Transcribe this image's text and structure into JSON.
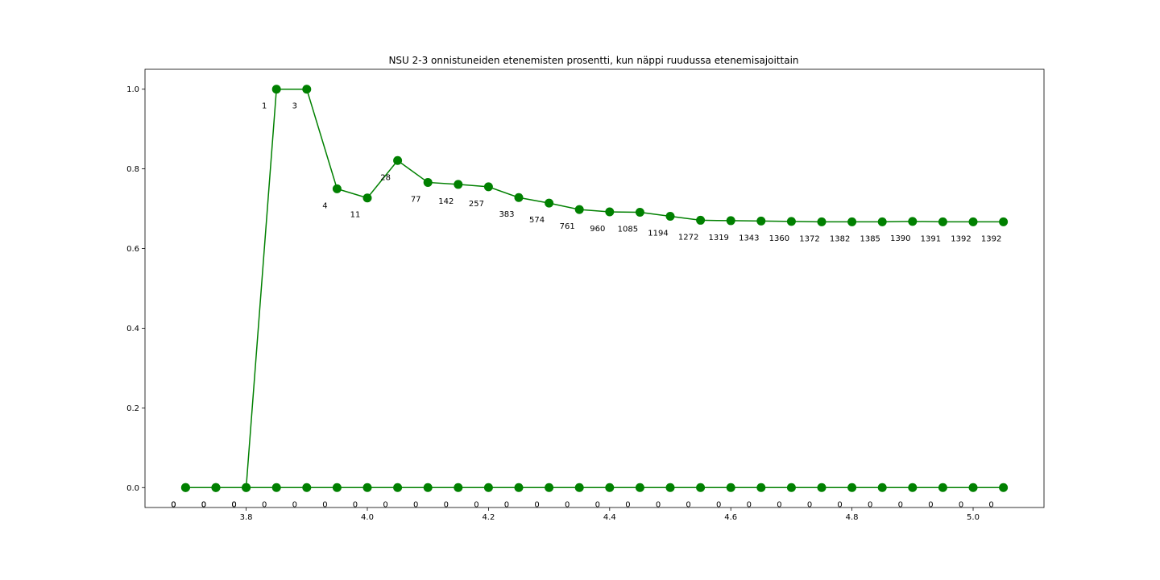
{
  "chart_data": {
    "type": "line",
    "title": "NSU 2-3 onnistuneiden etenemisten prosentti, kun näppi ruudussa etenemisajoittain",
    "xlabel": "",
    "ylabel": "",
    "xlim": [
      3.633,
      5.117
    ],
    "ylim": [
      -0.05,
      1.05
    ],
    "xticks": [
      "3.8",
      "4.0",
      "4.2",
      "4.4",
      "4.6",
      "4.8",
      "5.0"
    ],
    "yticks": [
      "0.0",
      "0.2",
      "0.4",
      "0.6",
      "0.8",
      "1.0"
    ],
    "grid": false,
    "legend": "none",
    "color": "#008000",
    "x": [
      3.7,
      3.75,
      3.8,
      3.85,
      3.9,
      3.95,
      4.0,
      4.05,
      4.1,
      4.15,
      4.2,
      4.25,
      4.3,
      4.35,
      4.4,
      4.45,
      4.5,
      4.55,
      4.6,
      4.65,
      4.7,
      4.75,
      4.8,
      4.85,
      4.9,
      4.95,
      5.0,
      5.05
    ],
    "series": [
      {
        "values": [
          0,
          0,
          0,
          1.0,
          1.0,
          0.75,
          0.727,
          0.821,
          0.766,
          0.761,
          0.755,
          0.728,
          0.714,
          0.698,
          0.692,
          0.691,
          0.681,
          0.671,
          0.67,
          0.669,
          0.668,
          0.667,
          0.667,
          0.667,
          0.668,
          0.667,
          0.667,
          0.667
        ],
        "labels": [
          "0",
          "0",
          "0",
          "1",
          "3",
          "4",
          "11",
          "28",
          "77",
          "142",
          "257",
          "383",
          "574",
          "761",
          "960",
          "1085",
          "1194",
          "1272",
          "1319",
          "1343",
          "1360",
          "1372",
          "1382",
          "1385",
          "1390",
          "1391",
          "1392",
          "1392"
        ]
      },
      {
        "values": [
          0,
          0,
          0,
          0,
          0,
          0,
          0,
          0,
          0,
          0,
          0,
          0,
          0,
          0,
          0,
          0,
          0,
          0,
          0,
          0,
          0,
          0,
          0,
          0,
          0,
          0,
          0,
          0
        ],
        "labels": [
          "0",
          "0",
          "0",
          "0",
          "0",
          "0",
          "0",
          "0",
          "0",
          "0",
          "0",
          "0",
          "0",
          "0",
          "0",
          "0",
          "0",
          "0",
          "0",
          "0",
          "0",
          "0",
          "0",
          "0",
          "0",
          "0",
          "0",
          "0"
        ]
      }
    ]
  }
}
